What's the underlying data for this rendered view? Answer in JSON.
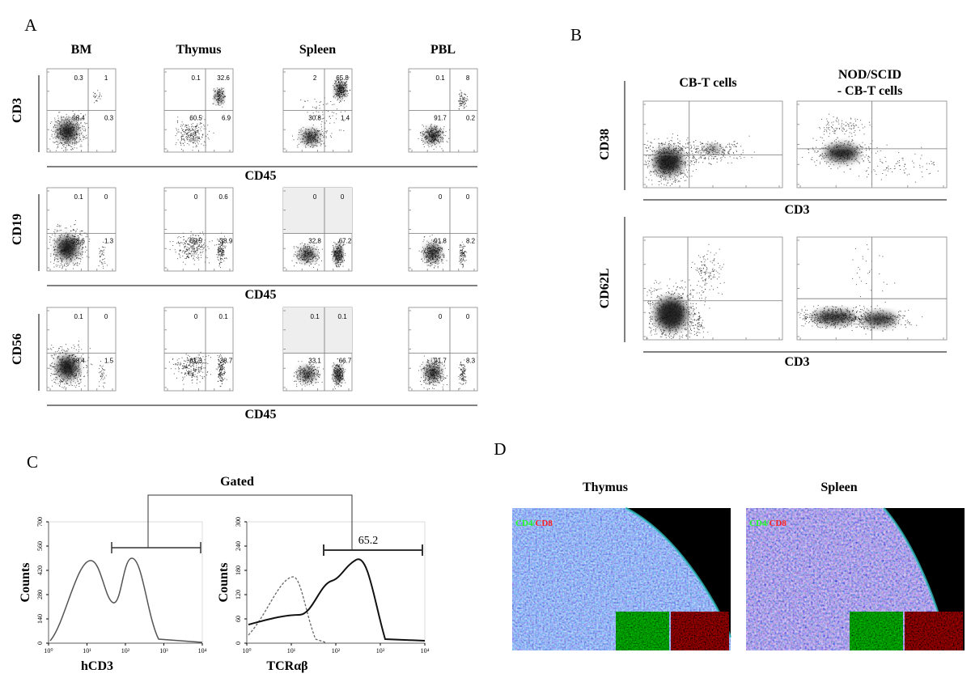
{
  "panel_a": {
    "label": "A",
    "columns": [
      "BM",
      "Thymus",
      "Spleen",
      "PBL"
    ],
    "rows": [
      {
        "marker": "CD3",
        "x_label": "CD45",
        "quadrants": [
          [
            "0.3",
            "1",
            "98.4",
            "0.3"
          ],
          [
            "0.1",
            "32.6",
            "60.5",
            "6.9"
          ],
          [
            "2",
            "65.8",
            "30.8",
            "1.4"
          ],
          [
            "0.1",
            "8",
            "91.7",
            "0.2"
          ]
        ]
      },
      {
        "marker": "CD19",
        "x_label": "CD45",
        "quadrants": [
          [
            "0.1",
            "0",
            "98.6",
            "1.3"
          ],
          [
            "0",
            "0.6",
            "60.5",
            "38.9"
          ],
          [
            "0",
            "0",
            "32.8",
            "67.2"
          ],
          [
            "0",
            "0",
            "91.8",
            "8.2"
          ]
        ]
      },
      {
        "marker": "CD56",
        "x_label": "CD45",
        "quadrants": [
          [
            "0.1",
            "0",
            "98.4",
            "1.5"
          ],
          [
            "0",
            "0.1",
            "61.3",
            "38.7"
          ],
          [
            "0.1",
            "0.1",
            "33.1",
            "66.7"
          ],
          [
            "0",
            "0",
            "91.7",
            "8.3"
          ]
        ]
      }
    ]
  },
  "panel_b": {
    "label": "B",
    "columns": [
      {
        "lines": [
          "CB-T cells"
        ]
      },
      {
        "lines": [
          "NOD/SCID",
          "- CB-T cells"
        ]
      }
    ],
    "rows": [
      {
        "marker": "CD38",
        "x_label": "CD3"
      },
      {
        "marker": "CD62L",
        "x_label": "CD3"
      }
    ]
  },
  "panel_c": {
    "label": "C",
    "gate_label": "Gated",
    "histograms": [
      {
        "y_label": "Counts",
        "x_label": "hCD3",
        "yticks": [
          "0",
          "140",
          "280",
          "420",
          "560",
          "700"
        ],
        "xticks": [
          "10⁰",
          "10¹",
          "10²",
          "10³",
          "10⁴"
        ]
      },
      {
        "y_label": "Counts",
        "x_label": "TCRαβ",
        "gate_value": "65.2",
        "yticks": [
          "0",
          "60",
          "120",
          "180",
          "240",
          "300"
        ],
        "xticks": [
          "10⁰",
          "10¹",
          "10²",
          "10³",
          "10⁴"
        ]
      }
    ]
  },
  "panel_d": {
    "label": "D",
    "images": [
      {
        "title": "Thymus",
        "stain_green": "CD4/",
        "stain_red": "CD8"
      },
      {
        "title": "Spleen",
        "stain_green": "CD4/",
        "stain_red": "CD8"
      }
    ]
  }
}
